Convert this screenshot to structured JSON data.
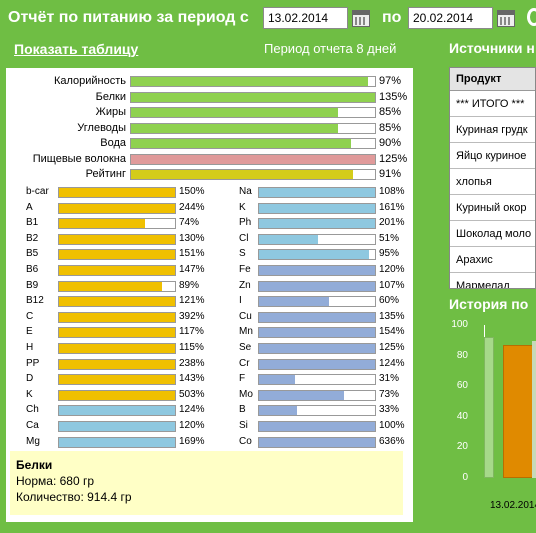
{
  "header": {
    "title": "Отчёт по питанию за период с",
    "date_from": "13.02.2014",
    "separator": "по",
    "date_to": "20.02.2014"
  },
  "show_table_link": "Показать таблицу",
  "period_text": "Период отчета 8 дней",
  "sources_title": "Источники н",
  "history_title": "История по",
  "main_bars": [
    {
      "label": "Калорийность",
      "pct": "97%",
      "value": 97,
      "color": "#8fd14f"
    },
    {
      "label": "Белки",
      "pct": "135%",
      "value": 135,
      "color": "#8fd14f"
    },
    {
      "label": "Жиры",
      "pct": "85%",
      "value": 85,
      "color": "#8fd14f"
    },
    {
      "label": "Углеводы",
      "pct": "85%",
      "value": 85,
      "color": "#8fd14f"
    },
    {
      "label": "Вода",
      "pct": "90%",
      "value": 90,
      "color": "#8fd14f"
    },
    {
      "label": "Пищевые волокна",
      "pct": "125%",
      "value": 125,
      "color": "#e09a9a"
    },
    {
      "label": "Рейтинг",
      "pct": "91%",
      "value": 91,
      "color": "#d4cc1a"
    }
  ],
  "vitamins": [
    {
      "label": "b-car",
      "pct": "150%",
      "value": 150
    },
    {
      "label": "A",
      "pct": "244%",
      "value": 244
    },
    {
      "label": "B1",
      "pct": "74%",
      "value": 74
    },
    {
      "label": "B2",
      "pct": "130%",
      "value": 130
    },
    {
      "label": "B5",
      "pct": "151%",
      "value": 151
    },
    {
      "label": "B6",
      "pct": "147%",
      "value": 147
    },
    {
      "label": "B9",
      "pct": "89%",
      "value": 89
    },
    {
      "label": "B12",
      "pct": "121%",
      "value": 121
    },
    {
      "label": "C",
      "pct": "392%",
      "value": 392
    },
    {
      "label": "E",
      "pct": "117%",
      "value": 117
    },
    {
      "label": "H",
      "pct": "115%",
      "value": 115
    },
    {
      "label": "PP",
      "pct": "238%",
      "value": 238
    },
    {
      "label": "D",
      "pct": "143%",
      "value": 143
    },
    {
      "label": "K",
      "pct": "503%",
      "value": 503
    },
    {
      "label": "Ch",
      "pct": "124%",
      "value": 124,
      "color": "#8ec8e0"
    },
    {
      "label": "Ca",
      "pct": "120%",
      "value": 120,
      "color": "#8ec8e0"
    },
    {
      "label": "Mg",
      "pct": "169%",
      "value": 169,
      "color": "#8ec8e0"
    }
  ],
  "minerals": [
    {
      "label": "Na",
      "pct": "108%",
      "value": 108,
      "color": "#8ec8e0"
    },
    {
      "label": "K",
      "pct": "161%",
      "value": 161,
      "color": "#8ec8e0"
    },
    {
      "label": "Ph",
      "pct": "201%",
      "value": 201,
      "color": "#8ec8e0"
    },
    {
      "label": "Cl",
      "pct": "51%",
      "value": 51,
      "color": "#8ec8e0"
    },
    {
      "label": "S",
      "pct": "95%",
      "value": 95,
      "color": "#8ec8e0"
    },
    {
      "label": "Fe",
      "pct": "120%",
      "value": 120,
      "color": "#92acd8"
    },
    {
      "label": "Zn",
      "pct": "107%",
      "value": 107,
      "color": "#92acd8"
    },
    {
      "label": "I",
      "pct": "60%",
      "value": 60,
      "color": "#92acd8"
    },
    {
      "label": "Cu",
      "pct": "135%",
      "value": 135,
      "color": "#92acd8"
    },
    {
      "label": "Mn",
      "pct": "154%",
      "value": 154,
      "color": "#92acd8"
    },
    {
      "label": "Se",
      "pct": "125%",
      "value": 125,
      "color": "#92acd8"
    },
    {
      "label": "Cr",
      "pct": "124%",
      "value": 124,
      "color": "#92acd8"
    },
    {
      "label": "F",
      "pct": "31%",
      "value": 31,
      "color": "#92acd8"
    },
    {
      "label": "Mo",
      "pct": "73%",
      "value": 73,
      "color": "#92acd8"
    },
    {
      "label": "B",
      "pct": "33%",
      "value": 33,
      "color": "#92acd8"
    },
    {
      "label": "Si",
      "pct": "100%",
      "value": 100,
      "color": "#92acd8"
    },
    {
      "label": "Co",
      "pct": "636%",
      "value": 636,
      "color": "#92acd8"
    }
  ],
  "vitamin_color": "#f0c000",
  "info": {
    "title": "Белки",
    "norm": "Норма: 680 гр",
    "amount": "Количество: 914.4 гр"
  },
  "products": {
    "header": "Продукт",
    "rows": [
      "*** ИТОГО ***",
      "Куриная грудк",
      "Яйцо куриное",
      "хлопья",
      "Куриный окор",
      "Шоколад моло",
      "Арахис",
      "Мармелад"
    ]
  },
  "chart_data": {
    "type": "bar",
    "categories": [
      "13.02.2014"
    ],
    "values": [
      87
    ],
    "ylim": [
      0,
      100
    ],
    "yticks": [
      "100",
      "80",
      "60",
      "40",
      "20",
      "0"
    ],
    "color": "#e08a00"
  }
}
